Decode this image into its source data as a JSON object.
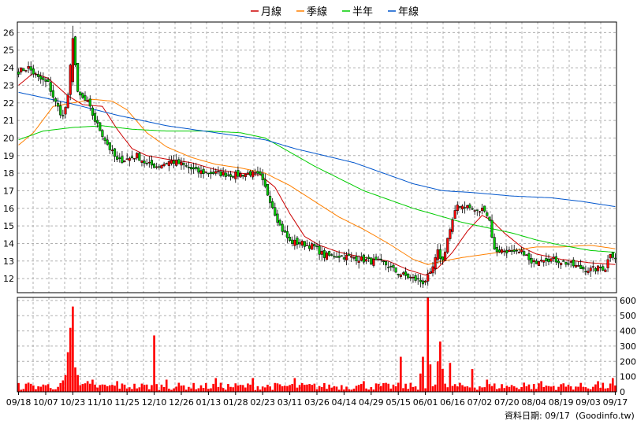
{
  "chart_data": {
    "type": "candlestick-with-volume",
    "legend": {
      "placement": "top-center",
      "items": [
        {
          "label": "月線",
          "color": "#cc0000"
        },
        {
          "label": "季線",
          "color": "#ff8000"
        },
        {
          "label": "半年",
          "color": "#00cc00"
        },
        {
          "label": "年線",
          "color": "#0055cc"
        }
      ]
    },
    "price_axis": {
      "min": 11.2,
      "max": 26.6,
      "ticks": [
        12,
        13,
        14,
        15,
        16,
        17,
        18,
        19,
        20,
        21,
        22,
        23,
        24,
        25,
        26
      ],
      "side": "left"
    },
    "volume_axis": {
      "min": 0,
      "max": 620,
      "ticks": [
        0,
        100,
        200,
        300,
        400,
        500,
        600
      ],
      "side": "right"
    },
    "x_axis": {
      "labels": [
        "09/18",
        "10/07",
        "10/23",
        "11/10",
        "11/25",
        "12/10",
        "12/26",
        "01/13",
        "01/28",
        "02/23",
        "03/11",
        "03/26",
        "04/14",
        "04/29",
        "05/15",
        "06/01",
        "06/16",
        "07/02",
        "07/20",
        "08/04",
        "08/19",
        "09/03",
        "09/17"
      ],
      "label_index": [
        0,
        11,
        22,
        33,
        44,
        55,
        66,
        77,
        88,
        99,
        110,
        121,
        132,
        143,
        154,
        165,
        176,
        187,
        198,
        209,
        220,
        231,
        242
      ]
    },
    "colors": {
      "up": "#ff0000",
      "down": "#00cc00",
      "volume": "#ff0000",
      "grid": "#b0b0b0"
    },
    "anchors": [
      [
        0,
        23.8
      ],
      [
        4,
        24.0
      ],
      [
        8,
        23.4
      ],
      [
        12,
        23.1
      ],
      [
        15,
        22.0
      ],
      [
        18,
        21.2
      ],
      [
        20,
        22.3
      ],
      [
        22,
        25.8
      ],
      [
        24,
        22.5
      ],
      [
        28,
        22.0
      ],
      [
        31,
        21.0
      ],
      [
        34,
        20.2
      ],
      [
        37,
        19.4
      ],
      [
        40,
        18.7
      ],
      [
        44,
        18.8
      ],
      [
        48,
        19.0
      ],
      [
        52,
        18.5
      ],
      [
        56,
        18.4
      ],
      [
        62,
        18.7
      ],
      [
        66,
        18.5
      ],
      [
        72,
        18.1
      ],
      [
        80,
        18.0
      ],
      [
        88,
        17.9
      ],
      [
        94,
        18.0
      ],
      [
        98,
        17.8
      ],
      [
        102,
        16.5
      ],
      [
        106,
        15.0
      ],
      [
        110,
        14.1
      ],
      [
        115,
        14.0
      ],
      [
        120,
        13.8
      ],
      [
        124,
        13.3
      ],
      [
        130,
        13.3
      ],
      [
        136,
        13.2
      ],
      [
        142,
        13.0
      ],
      [
        148,
        12.9
      ],
      [
        154,
        12.3
      ],
      [
        158,
        12.1
      ],
      [
        164,
        11.8
      ],
      [
        167,
        12.2
      ],
      [
        170,
        13.5
      ],
      [
        172,
        13.0
      ],
      [
        174,
        14.3
      ],
      [
        178,
        16.2
      ],
      [
        182,
        16.1
      ],
      [
        186,
        15.8
      ],
      [
        189,
        16.0
      ],
      [
        191,
        15.3
      ],
      [
        193,
        13.6
      ],
      [
        198,
        13.6
      ],
      [
        201,
        13.4
      ],
      [
        205,
        13.5
      ],
      [
        208,
        12.8
      ],
      [
        212,
        13.2
      ],
      [
        216,
        13.1
      ],
      [
        220,
        13.0
      ],
      [
        224,
        12.8
      ],
      [
        228,
        12.6
      ],
      [
        232,
        12.5
      ],
      [
        236,
        12.6
      ],
      [
        238,
        12.6
      ],
      [
        240,
        13.5
      ],
      [
        242,
        13.2
      ]
    ],
    "ma": {
      "月線": [
        [
          0,
          23.0
        ],
        [
          6,
          23.7
        ],
        [
          12,
          23.4
        ],
        [
          20,
          22.4
        ],
        [
          26,
          21.9
        ],
        [
          34,
          21.8
        ],
        [
          40,
          20.5
        ],
        [
          46,
          19.4
        ],
        [
          52,
          19.0
        ],
        [
          60,
          18.8
        ],
        [
          70,
          18.6
        ],
        [
          80,
          18.2
        ],
        [
          90,
          18.0
        ],
        [
          98,
          17.9
        ],
        [
          104,
          17.2
        ],
        [
          110,
          15.7
        ],
        [
          116,
          14.4
        ],
        [
          122,
          13.9
        ],
        [
          130,
          13.5
        ],
        [
          140,
          13.2
        ],
        [
          150,
          13.0
        ],
        [
          158,
          12.5
        ],
        [
          165,
          12.2
        ],
        [
          170,
          12.6
        ],
        [
          176,
          13.5
        ],
        [
          182,
          14.7
        ],
        [
          188,
          15.6
        ],
        [
          192,
          15.3
        ],
        [
          197,
          14.6
        ],
        [
          204,
          13.8
        ],
        [
          210,
          13.4
        ],
        [
          220,
          13.1
        ],
        [
          232,
          12.9
        ],
        [
          242,
          12.8
        ]
      ],
      "季線": [
        [
          0,
          19.6
        ],
        [
          6,
          20.3
        ],
        [
          14,
          21.8
        ],
        [
          22,
          22.0
        ],
        [
          30,
          22.2
        ],
        [
          38,
          22.1
        ],
        [
          44,
          21.6
        ],
        [
          52,
          20.3
        ],
        [
          60,
          19.5
        ],
        [
          70,
          18.9
        ],
        [
          80,
          18.5
        ],
        [
          90,
          18.3
        ],
        [
          100,
          18.0
        ],
        [
          110,
          17.3
        ],
        [
          120,
          16.4
        ],
        [
          130,
          15.5
        ],
        [
          140,
          14.8
        ],
        [
          150,
          14.0
        ],
        [
          160,
          13.1
        ],
        [
          166,
          12.8
        ],
        [
          172,
          13.0
        ],
        [
          180,
          13.2
        ],
        [
          190,
          13.4
        ],
        [
          200,
          13.6
        ],
        [
          210,
          13.8
        ],
        [
          220,
          13.8
        ],
        [
          232,
          13.9
        ],
        [
          242,
          13.7
        ]
      ],
      "半年": [
        [
          0,
          19.9
        ],
        [
          10,
          20.4
        ],
        [
          22,
          20.6
        ],
        [
          34,
          20.7
        ],
        [
          46,
          20.5
        ],
        [
          60,
          20.4
        ],
        [
          76,
          20.4
        ],
        [
          90,
          20.3
        ],
        [
          100,
          20.0
        ],
        [
          110,
          19.2
        ],
        [
          120,
          18.4
        ],
        [
          130,
          17.7
        ],
        [
          140,
          17.0
        ],
        [
          150,
          16.5
        ],
        [
          160,
          16.0
        ],
        [
          170,
          15.6
        ],
        [
          180,
          15.2
        ],
        [
          190,
          14.9
        ],
        [
          200,
          14.6
        ],
        [
          210,
          14.2
        ],
        [
          220,
          13.9
        ],
        [
          232,
          13.6
        ],
        [
          242,
          13.5
        ]
      ],
      "年線": [
        [
          0,
          22.6
        ],
        [
          20,
          22.0
        ],
        [
          40,
          21.3
        ],
        [
          60,
          20.7
        ],
        [
          80,
          20.3
        ],
        [
          100,
          19.9
        ],
        [
          112,
          19.4
        ],
        [
          124,
          19.0
        ],
        [
          136,
          18.6
        ],
        [
          148,
          18.0
        ],
        [
          160,
          17.4
        ],
        [
          172,
          17.0
        ],
        [
          184,
          16.9
        ],
        [
          200,
          16.7
        ],
        [
          216,
          16.6
        ],
        [
          228,
          16.4
        ],
        [
          242,
          16.1
        ]
      ]
    },
    "volume_spikes": [
      [
        4,
        60
      ],
      [
        12,
        50
      ],
      [
        18,
        75
      ],
      [
        19,
        110
      ],
      [
        20,
        260
      ],
      [
        21,
        420
      ],
      [
        22,
        560
      ],
      [
        23,
        160
      ],
      [
        24,
        110
      ],
      [
        28,
        70
      ],
      [
        30,
        80
      ],
      [
        40,
        70
      ],
      [
        55,
        370
      ],
      [
        60,
        80
      ],
      [
        80,
        90
      ],
      [
        95,
        90
      ],
      [
        112,
        90
      ],
      [
        140,
        70
      ],
      [
        155,
        230
      ],
      [
        163,
        120
      ],
      [
        164,
        230
      ],
      [
        166,
        620
      ],
      [
        167,
        180
      ],
      [
        170,
        200
      ],
      [
        171,
        330
      ],
      [
        172,
        150
      ],
      [
        175,
        190
      ],
      [
        184,
        150
      ],
      [
        190,
        80
      ],
      [
        205,
        60
      ],
      [
        212,
        70
      ],
      [
        220,
        50
      ],
      [
        235,
        70
      ],
      [
        241,
        90
      ]
    ]
  },
  "footer": {
    "date_text": "資料日期: 09/17",
    "source_text": "(Goodinfo.tw)"
  }
}
